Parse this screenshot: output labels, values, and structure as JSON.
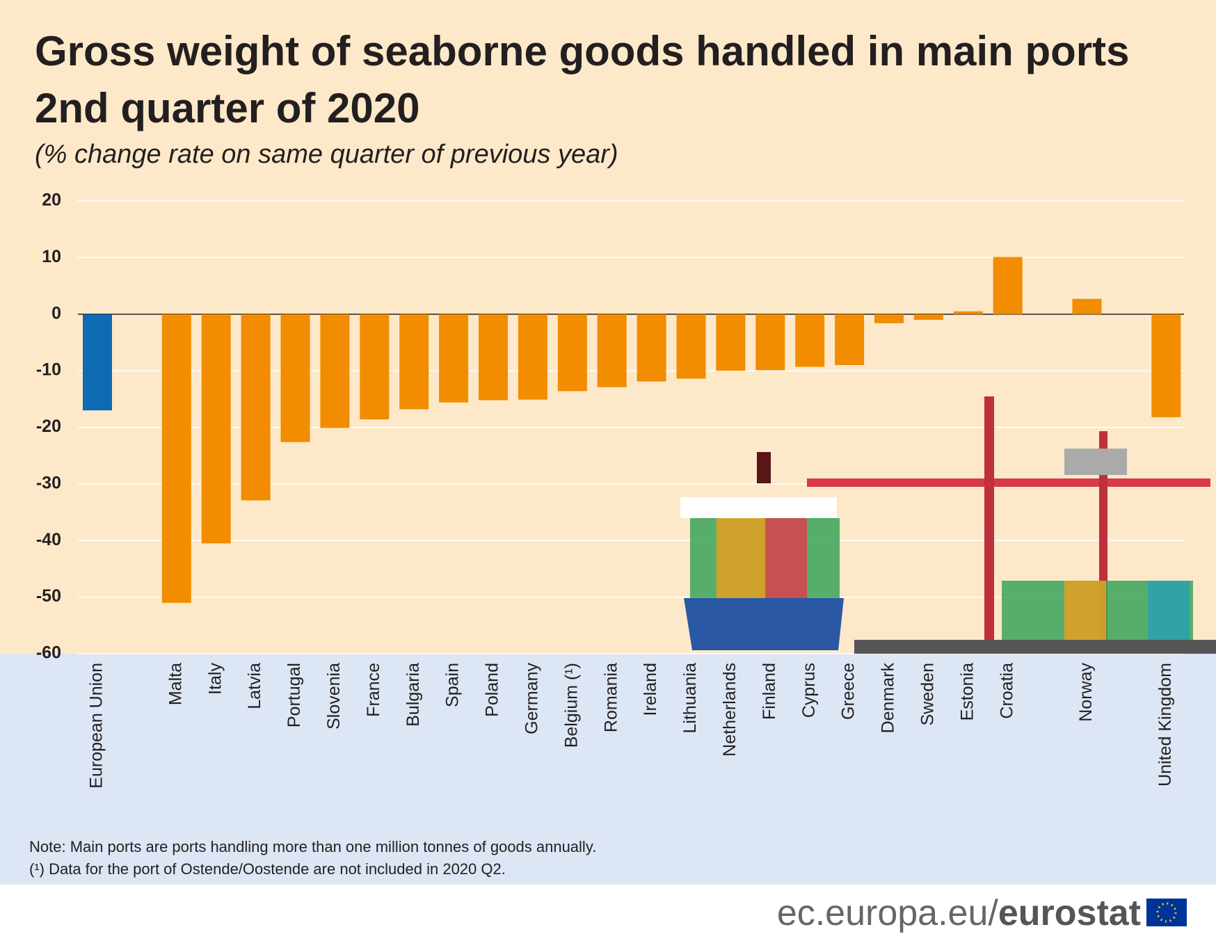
{
  "chart_data": {
    "type": "bar",
    "title": "Gross weight of seaborne goods handled in main ports",
    "subtitle_line": "2nd quarter of 2020",
    "subtitle": "(% change rate on same quarter of previous year)",
    "categories": [
      "European Union",
      "Malta",
      "Italy",
      "Latvia",
      "Portugal",
      "Slovenia",
      "France",
      "Bulgaria",
      "Spain",
      "Poland",
      "Germany",
      "Belgium (¹)",
      "Romania",
      "Ireland",
      "Lithuania",
      "Netherlands",
      "Finland",
      "Cyprus",
      "Greece",
      "Denmark",
      "Sweden",
      "Estonia",
      "Croatia",
      "Norway",
      "United Kingdom"
    ],
    "values": [
      -17.0,
      -51.0,
      -40.5,
      -32.9,
      -22.6,
      -20.1,
      -18.6,
      -16.8,
      -15.6,
      -15.2,
      -15.1,
      -13.6,
      -12.9,
      -11.9,
      -11.4,
      -10.0,
      -9.9,
      -9.3,
      -9.0,
      -1.6,
      -1.0,
      0.5,
      10.1,
      2.7,
      -18.2
    ],
    "colors": [
      "#0e6ab3",
      "#f28c00",
      "#f28c00",
      "#f28c00",
      "#f28c00",
      "#f28c00",
      "#f28c00",
      "#f28c00",
      "#f28c00",
      "#f28c00",
      "#f28c00",
      "#f28c00",
      "#f28c00",
      "#f28c00",
      "#f28c00",
      "#f28c00",
      "#f28c00",
      "#f28c00",
      "#f28c00",
      "#f28c00",
      "#f28c00",
      "#f28c00",
      "#f28c00",
      "#f28c00",
      "#f28c00"
    ],
    "ylim": [
      -60,
      20
    ],
    "yticks": [
      -60,
      -50,
      -40,
      -30,
      -20,
      -10,
      0,
      10,
      20
    ],
    "grid": true,
    "notes": [
      "Note: Main ports are ports handling more than one million tonnes of goods annually.",
      "(¹) Data for the port of Ostende/Oostende are not included in 2020 Q2."
    ],
    "source": [
      "ec.europa.eu/",
      "eurostat"
    ]
  }
}
